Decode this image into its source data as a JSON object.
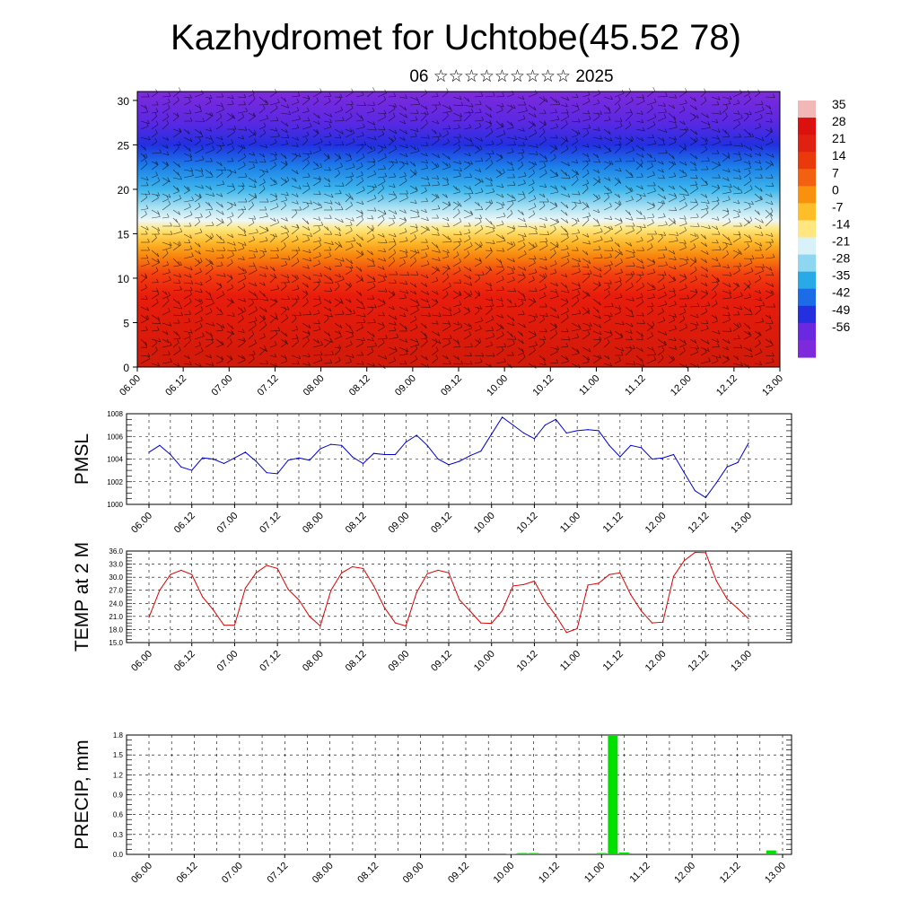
{
  "title": "Kazhydromet for Uchtobe(45.52 78)",
  "subtitle": "06 ☆☆☆☆☆☆☆☆☆ 2025",
  "chart_data": [
    {
      "type": "heatmap",
      "name": "vertical temperature cross-section",
      "x_tick_labels": [
        "06.00",
        "06.12",
        "07.00",
        "07.12",
        "08.00",
        "08.12",
        "09.00",
        "09.12",
        "10.00",
        "10.12",
        "11.00",
        "11.12",
        "12.00",
        "12.12",
        "13.00"
      ],
      "y_tick_labels": [
        "0",
        "5",
        "10",
        "15",
        "20",
        "25",
        "30"
      ],
      "ylim": [
        0,
        31
      ],
      "colorbar_labels": [
        "35",
        "28",
        "21",
        "14",
        "7",
        "0",
        "-7",
        "-14",
        "-21",
        "-28",
        "-35",
        "-42",
        "-49",
        "-56"
      ],
      "colorbar_colors": [
        "#f2b8b8",
        "#dd1010",
        "#e02010",
        "#ea3a0c",
        "#f26010",
        "#f9900e",
        "#fdbe2a",
        "#ffe680",
        "#d9f2fa",
        "#8fd6f0",
        "#28aae8",
        "#1c6ce8",
        "#2430e0",
        "#6a28e0",
        "#7e2adc"
      ],
      "layers": [
        {
          "height": 0,
          "color": "#d11a0a"
        },
        {
          "height": 8,
          "color": "#e81c0c"
        },
        {
          "height": 10.5,
          "color": "#f24010"
        },
        {
          "height": 12.5,
          "color": "#f8860e"
        },
        {
          "height": 14,
          "color": "#fcb82a"
        },
        {
          "height": 15.5,
          "color": "#fee67a"
        },
        {
          "height": 16.5,
          "color": "#eef8f8"
        },
        {
          "height": 18,
          "color": "#a8e0f2"
        },
        {
          "height": 20,
          "color": "#3eb6ec"
        },
        {
          "height": 22.5,
          "color": "#1c80e8"
        },
        {
          "height": 25,
          "color": "#2230e0"
        },
        {
          "height": 27.5,
          "color": "#5a28e2"
        },
        {
          "height": 31,
          "color": "#7e2adc"
        }
      ],
      "has_wind_barbs": true
    },
    {
      "type": "line",
      "ylabel": "PMSL",
      "y_tick_labels": [
        "1000",
        "1002",
        "1004",
        "1006",
        "1008"
      ],
      "ylim": [
        1000,
        1008
      ],
      "x_tick_labels": [
        "06.00",
        "06.12",
        "07.00",
        "07.12",
        "08.00",
        "08.12",
        "09.00",
        "09.12",
        "10.00",
        "10.12",
        "11.00",
        "11.12",
        "12.00",
        "12.12",
        "13.00"
      ],
      "color": "#0000cc",
      "grid": true,
      "series": [
        {
          "x": [
            0,
            3,
            6,
            9,
            12,
            15,
            18,
            21,
            24,
            27,
            30,
            33,
            36,
            39,
            42,
            45,
            48,
            51,
            54,
            57,
            60,
            63,
            66,
            69,
            72,
            75,
            78,
            81,
            84,
            87,
            90,
            93,
            96,
            99,
            102,
            105,
            108,
            111,
            114,
            117,
            120,
            123,
            126,
            129,
            132,
            135,
            138,
            141,
            144,
            147,
            150,
            153,
            156,
            159,
            162,
            165,
            168
          ],
          "y": [
            1004.6,
            1005.2,
            1004.4,
            1003.3,
            1003.0,
            1004.1,
            1004.0,
            1003.6,
            1004.1,
            1004.6,
            1003.8,
            1002.8,
            1002.7,
            1003.9,
            1004.1,
            1003.9,
            1004.9,
            1005.3,
            1005.2,
            1004.2,
            1003.6,
            1004.5,
            1004.4,
            1004.4,
            1005.5,
            1006.1,
            1005.2,
            1004.0,
            1003.5,
            1003.8,
            1004.3,
            1004.7,
            1006.2,
            1007.7,
            1007.0,
            1006.3,
            1005.8,
            1007.0,
            1007.5,
            1006.3,
            1006.5,
            1006.6,
            1006.5,
            1005.2,
            1004.2,
            1005.2,
            1005.0,
            1004.0,
            1004.1,
            1004.4,
            1002.8,
            1001.2,
            1000.6,
            1001.9,
            1003.3,
            1003.7,
            1005.4
          ]
        }
      ]
    },
    {
      "type": "line",
      "ylabel": "TEMP at 2 M",
      "y_tick_labels": [
        "15.0",
        "18.0",
        "21.0",
        "24.0",
        "27.0",
        "30.0",
        "33.0",
        "36.0"
      ],
      "ylim": [
        15,
        36
      ],
      "x_tick_labels": [
        "06.00",
        "06.12",
        "07.00",
        "07.12",
        "08.00",
        "08.12",
        "09.00",
        "09.12",
        "10.00",
        "10.12",
        "11.00",
        "11.12",
        "12.00",
        "12.12",
        "13.00"
      ],
      "color": "#dd0000",
      "grid": true,
      "series": [
        {
          "x": [
            0,
            3,
            6,
            9,
            12,
            15,
            18,
            21,
            24,
            27,
            30,
            33,
            36,
            39,
            42,
            45,
            48,
            51,
            54,
            57,
            60,
            63,
            66,
            69,
            72,
            75,
            78,
            81,
            84,
            87,
            90,
            93,
            96,
            99,
            102,
            105,
            108,
            111,
            114,
            117,
            120,
            123,
            126,
            129,
            132,
            135,
            138,
            141,
            144,
            147,
            150,
            153,
            156,
            159,
            162,
            165,
            168
          ],
          "y": [
            20.8,
            27.0,
            30.6,
            31.6,
            30.6,
            25.5,
            22.5,
            19.0,
            19.0,
            27.5,
            31.0,
            32.7,
            32.0,
            27.2,
            24.8,
            21.0,
            18.8,
            27.0,
            31.0,
            32.4,
            32.0,
            28.0,
            23.0,
            19.5,
            18.8,
            26.5,
            30.8,
            31.6,
            31.0,
            24.8,
            22.2,
            19.5,
            19.4,
            22.3,
            28.0,
            28.3,
            29.1,
            24.5,
            21.2,
            17.3,
            18.2,
            28.2,
            28.6,
            30.6,
            31.0,
            26.0,
            22.2,
            19.5,
            19.7,
            30.2,
            33.8,
            35.7,
            35.6,
            29.2,
            25.0,
            22.8,
            20.5
          ]
        }
      ]
    },
    {
      "type": "bar",
      "ylabel": "PRECIP, mm",
      "y_tick_labels": [
        "0.0",
        "0.3",
        "0.6",
        "0.9",
        "1.2",
        "1.5",
        "1.8"
      ],
      "ylim": [
        0,
        1.8
      ],
      "x_tick_labels": [
        "06.00",
        "06.12",
        "07.00",
        "07.12",
        "08.00",
        "08.12",
        "09.00",
        "09.12",
        "10.00",
        "10.12",
        "11.00",
        "11.12",
        "12.00",
        "12.12",
        "13.00"
      ],
      "color": "#00e000",
      "grid": true,
      "series": [
        {
          "x": [
            96,
            99,
            102,
            120,
            123,
            126,
            165
          ],
          "y": [
            0.01,
            0.02,
            0.02,
            0.02,
            1.8,
            0.03,
            0.06
          ]
        }
      ]
    }
  ]
}
